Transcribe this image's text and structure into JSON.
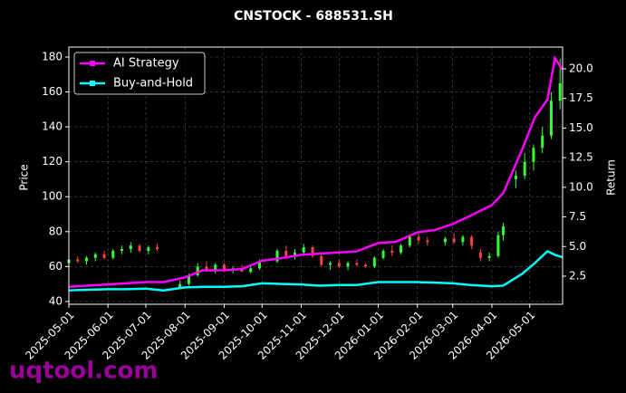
{
  "chart_data": {
    "type": "candlestick",
    "title": "CNSTOCK - 688531.SH",
    "ylabel": "Price",
    "y2label": "Return",
    "watermark": "uqtool.com",
    "x": [
      "2025-05-01",
      "2025-05-08",
      "2025-05-15",
      "2025-05-22",
      "2025-05-29",
      "2025-06-05",
      "2025-06-12",
      "2025-06-19",
      "2025-06-26",
      "2025-07-03",
      "2025-07-10",
      "2025-07-28",
      "2025-08-04",
      "2025-08-11",
      "2025-08-18",
      "2025-08-25",
      "2025-09-01",
      "2025-09-08",
      "2025-09-15",
      "2025-09-22",
      "2025-09-29",
      "2025-10-13",
      "2025-10-20",
      "2025-10-27",
      "2025-11-03",
      "2025-11-10",
      "2025-11-17",
      "2025-11-24",
      "2025-12-01",
      "2025-12-08",
      "2025-12-15",
      "2025-12-22",
      "2025-12-29",
      "2026-01-05",
      "2026-01-12",
      "2026-01-19",
      "2026-01-26",
      "2026-02-02",
      "2026-02-09",
      "2026-02-23",
      "2026-03-02",
      "2026-03-09",
      "2026-03-16",
      "2026-03-23",
      "2026-03-30",
      "2026-04-06",
      "2026-04-10",
      "2026-04-20",
      "2026-04-27",
      "2026-05-04",
      "2026-05-11",
      "2026-05-18",
      "2026-05-25"
    ],
    "open": [
      62,
      64,
      63,
      65,
      67,
      65,
      69,
      70,
      72,
      69,
      71,
      48,
      50,
      55,
      60,
      58,
      61,
      58,
      59,
      57,
      59,
      63,
      69,
      66,
      68,
      71,
      66,
      61,
      62,
      60,
      62,
      61,
      60,
      65,
      69,
      68,
      72,
      77,
      75,
      74,
      76,
      74,
      77,
      68,
      65,
      66,
      78,
      110,
      112,
      120,
      128,
      135,
      155
    ],
    "high": [
      65,
      66,
      66,
      68,
      69,
      70,
      72,
      74,
      73,
      72,
      73,
      52,
      56,
      62,
      63,
      62,
      62,
      60,
      61,
      60,
      64,
      70,
      72,
      70,
      73,
      72,
      67,
      63,
      64,
      63,
      64,
      62,
      66,
      70,
      72,
      73,
      78,
      80,
      77,
      77,
      79,
      78,
      78,
      70,
      68,
      80,
      85,
      115,
      125,
      130,
      140,
      160,
      179
    ],
    "low": [
      60,
      62,
      61,
      63,
      64,
      64,
      67,
      68,
      68,
      67,
      69,
      47,
      49,
      54,
      57,
      56,
      57,
      56,
      57,
      56,
      58,
      62,
      65,
      64,
      66,
      65,
      60,
      58,
      59,
      58,
      60,
      59,
      59,
      64,
      66,
      67,
      71,
      73,
      72,
      72,
      73,
      72,
      70,
      63,
      63,
      65,
      75,
      105,
      110,
      115,
      125,
      133,
      150
    ],
    "close": [
      64,
      63,
      65,
      67,
      65,
      69,
      70,
      72,
      69,
      71,
      70,
      50,
      55,
      60,
      58,
      61,
      58,
      59,
      57,
      59,
      63,
      69,
      66,
      68,
      71,
      66,
      61,
      62,
      60,
      62,
      61,
      60,
      65,
      69,
      68,
      72,
      77,
      75,
      74,
      76,
      74,
      77,
      72,
      65,
      66,
      78,
      83,
      112,
      120,
      128,
      135,
      155,
      165
    ],
    "up_color": "#33ff33",
    "down_color": "#ff4444",
    "series": [
      {
        "name": "AI Strategy",
        "color": "#ff00ff",
        "axis": "y2",
        "x": [
          "2025-05-01",
          "2025-05-15",
          "2025-06-01",
          "2025-06-15",
          "2025-07-01",
          "2025-07-15",
          "2025-08-01",
          "2025-08-15",
          "2025-09-01",
          "2025-09-15",
          "2025-10-01",
          "2025-10-15",
          "2025-11-01",
          "2025-11-15",
          "2025-12-01",
          "2025-12-15",
          "2026-01-01",
          "2026-01-15",
          "2026-02-01",
          "2026-02-15",
          "2026-03-01",
          "2026-03-15",
          "2026-04-01",
          "2026-04-10",
          "2026-04-25",
          "2026-05-05",
          "2026-05-15",
          "2026-05-21",
          "2026-05-27"
        ],
        "values": [
          1.6,
          1.7,
          1.8,
          1.9,
          2.0,
          2.0,
          2.4,
          3.0,
          3.0,
          3.1,
          3.8,
          4.0,
          4.3,
          4.4,
          4.5,
          4.6,
          5.3,
          5.4,
          6.2,
          6.4,
          6.9,
          7.6,
          8.5,
          9.5,
          13.2,
          15.9,
          17.4,
          20.9,
          19.9
        ]
      },
      {
        "name": "Buy-and-Hold",
        "color": "#00ffff",
        "axis": "y2",
        "x": [
          "2025-05-01",
          "2025-05-15",
          "2025-06-01",
          "2025-06-15",
          "2025-07-01",
          "2025-07-15",
          "2025-08-01",
          "2025-08-15",
          "2025-09-01",
          "2025-09-15",
          "2025-10-01",
          "2025-10-15",
          "2025-11-01",
          "2025-11-15",
          "2025-12-01",
          "2025-12-15",
          "2026-01-01",
          "2026-01-15",
          "2026-02-01",
          "2026-02-15",
          "2026-03-01",
          "2026-03-15",
          "2026-04-01",
          "2026-04-10",
          "2026-04-25",
          "2026-05-05",
          "2026-05-15",
          "2026-05-21",
          "2026-05-27"
        ],
        "values": [
          1.3,
          1.35,
          1.4,
          1.4,
          1.45,
          1.3,
          1.55,
          1.6,
          1.6,
          1.65,
          1.9,
          1.85,
          1.8,
          1.7,
          1.75,
          1.75,
          2.0,
          2.0,
          2.0,
          1.95,
          1.9,
          1.75,
          1.65,
          1.7,
          2.7,
          3.6,
          4.6,
          4.3,
          4.1
        ]
      }
    ],
    "xlim": [
      "2025-05-01",
      "2026-05-27"
    ],
    "xticks": [
      "2025-05-01",
      "2025-06-01",
      "2025-07-01",
      "2025-08-01",
      "2025-09-01",
      "2025-10-01",
      "2025-11-01",
      "2025-12-01",
      "2026-01-01",
      "2026-02-01",
      "2026-03-01",
      "2026-04-01",
      "2026-05-01"
    ],
    "ylim": [
      38.4,
      185.7
    ],
    "yticks": [
      40,
      60,
      80,
      100,
      120,
      140,
      160,
      180
    ],
    "y2lim": [
      0.13,
      21.83
    ],
    "y2ticks": [
      2.5,
      {
        "value": 5,
        "label": "5.0"
      },
      7.5,
      {
        "value": 10,
        "label": "10.0"
      },
      12.5,
      {
        "value": 15,
        "label": "15.0"
      },
      17.5,
      {
        "value": 20,
        "label": "20.0"
      }
    ],
    "grid": true,
    "legend": "upper left"
  }
}
